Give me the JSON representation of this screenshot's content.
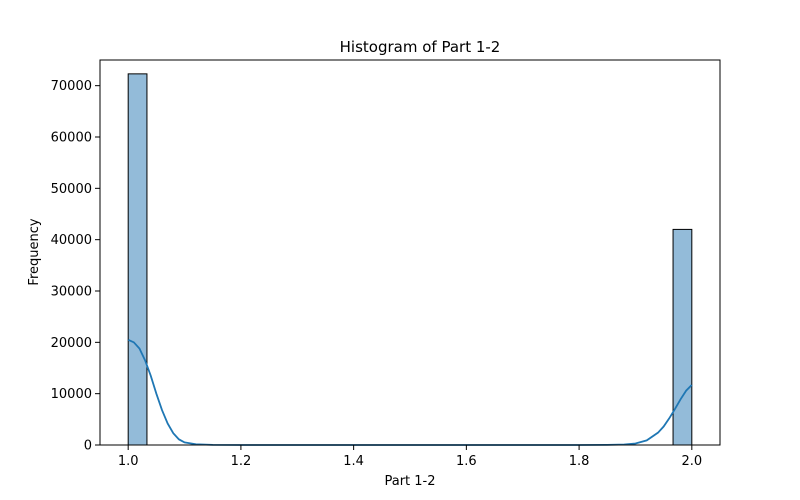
{
  "chart_data": {
    "type": "bar",
    "title": "Histogram of Part 1-2",
    "xlabel": "Part 1-2",
    "ylabel": "Frequency",
    "xlim": [
      0.95,
      2.05
    ],
    "ylim": [
      0,
      75000
    ],
    "x_ticks": [
      1.0,
      1.2,
      1.4,
      1.6,
      1.8,
      2.0
    ],
    "x_tick_labels": [
      "1.0",
      "1.2",
      "1.4",
      "1.6",
      "1.8",
      "2.0"
    ],
    "y_ticks": [
      0,
      10000,
      20000,
      30000,
      40000,
      50000,
      60000,
      70000
    ],
    "y_tick_labels": [
      "0",
      "10000",
      "20000",
      "30000",
      "40000",
      "50000",
      "60000",
      "70000"
    ],
    "bins": [
      {
        "x0": 1.0,
        "x1": 1.0333,
        "value": 72300
      },
      {
        "x0": 1.9667,
        "x1": 2.0,
        "value": 42000
      }
    ],
    "kde": [
      [
        1.0,
        20500
      ],
      [
        1.01,
        20000
      ],
      [
        1.02,
        18800
      ],
      [
        1.03,
        16500
      ],
      [
        1.04,
        13500
      ],
      [
        1.05,
        10000
      ],
      [
        1.06,
        6800
      ],
      [
        1.07,
        4200
      ],
      [
        1.08,
        2300
      ],
      [
        1.09,
        1100
      ],
      [
        1.1,
        500
      ],
      [
        1.12,
        150
      ],
      [
        1.15,
        20
      ],
      [
        1.2,
        0
      ],
      [
        1.8,
        0
      ],
      [
        1.85,
        20
      ],
      [
        1.88,
        100
      ],
      [
        1.9,
        300
      ],
      [
        1.92,
        900
      ],
      [
        1.94,
        2400
      ],
      [
        1.95,
        3600
      ],
      [
        1.96,
        5200
      ],
      [
        1.97,
        7000
      ],
      [
        1.98,
        8900
      ],
      [
        1.99,
        10600
      ],
      [
        2.0,
        11700
      ]
    ],
    "grid": false,
    "colors": {
      "bar_fill": "#93bbd9",
      "bar_edge": "#000000",
      "kde_line": "#1f77b4"
    }
  }
}
